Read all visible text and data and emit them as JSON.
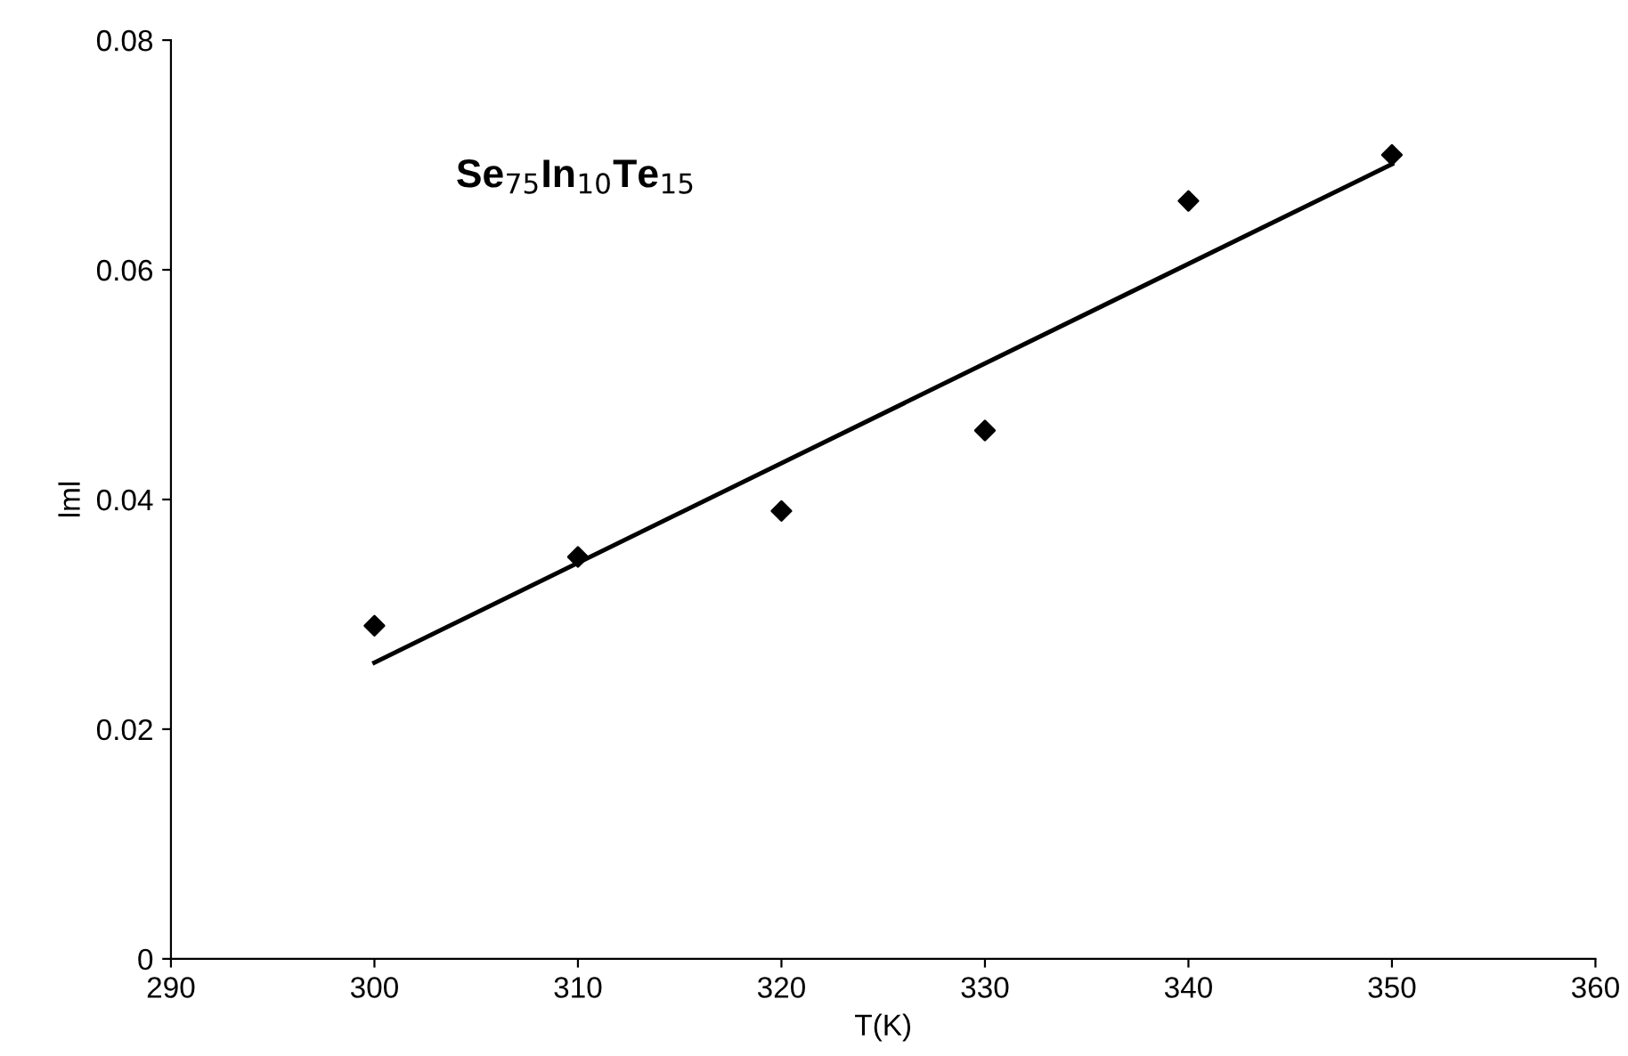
{
  "chart_data": {
    "type": "scatter",
    "xlabel": "T(K)",
    "ylabel": "lml",
    "annotations": [
      "Se$_{75}$In$_{10}$Te$_{15}$"
    ],
    "x": [
      300,
      310,
      320,
      330,
      340,
      350
    ],
    "series": [
      {
        "color": "#000000",
        "marker": "diamond",
        "values": [
          0.029,
          0.035,
          0.039,
          0.046,
          0.066,
          0.07
        ]
      },
      {
        "type": "line",
        "color": "#000000",
        "x": [
          300,
          350
        ],
        "values": [
          0.0258,
          0.0692
        ],
        "line_style": "solid"
      }
    ],
    "xlim": [
      290,
      360
    ],
    "xticks": [
      290,
      300,
      310,
      320,
      330,
      340,
      350,
      360
    ],
    "ylim": [
      0,
      0.08
    ],
    "yticks": [
      0,
      0.02,
      0.04,
      0.06,
      0.08
    ],
    "grid": false
  }
}
